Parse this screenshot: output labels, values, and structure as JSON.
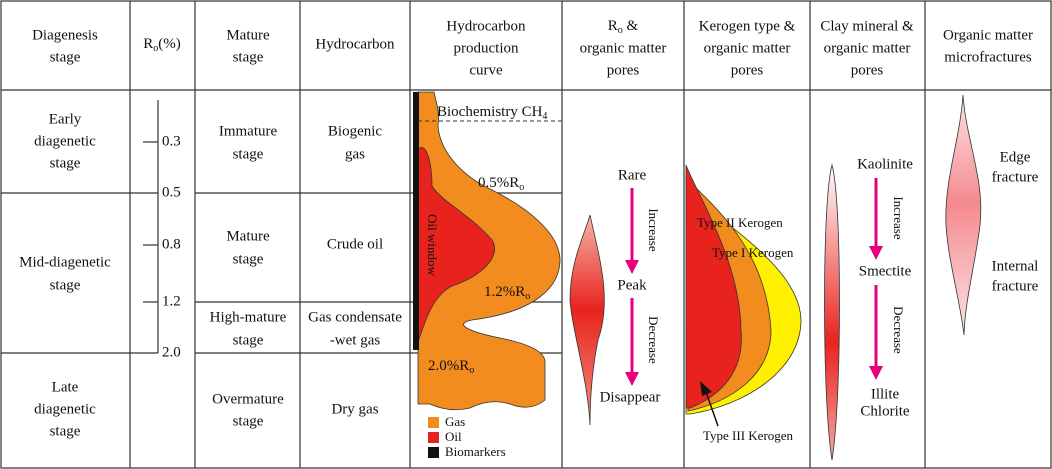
{
  "headers": {
    "diagenesis": [
      "Diagenesis",
      "stage"
    ],
    "ro": {
      "symbol": "R",
      "sub": "o",
      "unit": "(%)"
    },
    "mature": [
      "Mature",
      "stage"
    ],
    "hydrocarbon": "Hydrocarbon",
    "curve": [
      "Hydrocarbon",
      "production",
      "curve"
    ],
    "ro_pores": {
      "symbol": "R",
      "sub": "o",
      "rest": " &",
      "lines": [
        "organic matter",
        "pores"
      ]
    },
    "kerogen": [
      "Kerogen type &",
      "organic matter",
      "pores"
    ],
    "clay": [
      "Clay mineral &",
      "organic matter",
      "pores"
    ],
    "fractures": [
      "Organic matter",
      "microfractures"
    ]
  },
  "diagenesis_stages": [
    [
      "Early",
      "diagenetic",
      "stage"
    ],
    [
      "Mid-diagenetic",
      "stage"
    ],
    [
      "Late",
      "diagenetic",
      "stage"
    ]
  ],
  "ro_values": [
    "0.3",
    "0.5",
    "0.8",
    "1.2",
    "2.0"
  ],
  "mature_stages": [
    [
      "Immature",
      "stage"
    ],
    [
      "Mature",
      "stage"
    ],
    [
      "High-mature",
      "stage"
    ],
    [
      "Overmature",
      "stage"
    ]
  ],
  "hydrocarbons": [
    [
      "Biogenic",
      "gas"
    ],
    [
      "Crude oil"
    ],
    [
      "Gas condensate",
      "-wet gas"
    ],
    [
      "Dry gas"
    ]
  ],
  "curve": {
    "biochemistry": {
      "text": "Biochemistry CH",
      "sub": "4"
    },
    "thresholds": [
      {
        "text": "0.5%R",
        "sub": "o"
      },
      {
        "text": "1.2%R",
        "sub": "o"
      },
      {
        "text": "2.0%R",
        "sub": "o"
      }
    ],
    "oil_window": "Oil window",
    "legend": [
      "Gas",
      "Oil",
      "Biomarkers"
    ]
  },
  "ro_pores": [
    "Rare",
    "Increase",
    "Peak",
    "Decrease",
    "Disappear"
  ],
  "kerogen": [
    "Type II Kerogen",
    "Type I Kerogen",
    "Type III Kerogen"
  ],
  "clay": [
    "Kaolinite",
    "Increase",
    "Smectite",
    "Decrease",
    "Illite",
    "Chlorite"
  ],
  "fractures": [
    [
      "Edge",
      "fracture"
    ],
    [
      "Internal",
      "fracture"
    ]
  ]
}
